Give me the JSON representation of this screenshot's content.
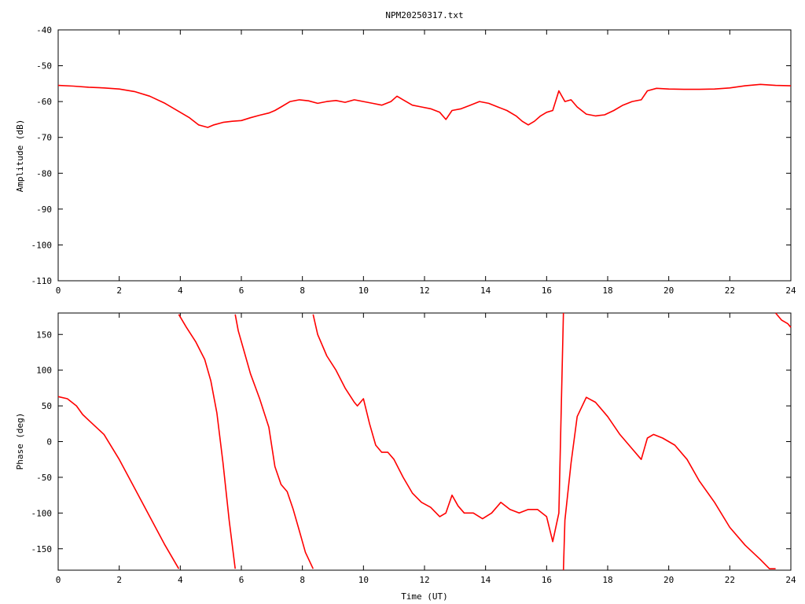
{
  "title": "NPM20250317.txt",
  "colors": {
    "series": "#ff0000",
    "axis": "#000000",
    "background": "#ffffff"
  },
  "chart_data": [
    {
      "type": "line",
      "xlabel": "",
      "ylabel": "Amplitude (dB)",
      "xlim": [
        0,
        24
      ],
      "ylim": [
        -110,
        -40
      ],
      "xticks": [
        "0",
        "2",
        "4",
        "6",
        "8",
        "10",
        "12",
        "14",
        "16",
        "18",
        "20",
        "22",
        "24"
      ],
      "yticks": [
        "-40",
        "-50",
        "-60",
        "-70",
        "-80",
        "-90",
        "-100",
        "-110"
      ],
      "grid": false,
      "legend": "none",
      "x": [
        0,
        0.5,
        1,
        1.5,
        2,
        2.5,
        3,
        3.5,
        4,
        4.3,
        4.6,
        4.9,
        5.1,
        5.4,
        5.7,
        6,
        6.3,
        6.6,
        6.9,
        7.1,
        7.3,
        7.6,
        7.9,
        8.2,
        8.5,
        8.8,
        9.1,
        9.4,
        9.7,
        10,
        10.3,
        10.6,
        10.9,
        11.1,
        11.3,
        11.6,
        11.9,
        12.2,
        12.5,
        12.7,
        12.9,
        13.2,
        13.5,
        13.8,
        14.1,
        14.4,
        14.7,
        15,
        15.2,
        15.4,
        15.6,
        15.8,
        16,
        16.2,
        16.4,
        16.6,
        16.8,
        17,
        17.3,
        17.6,
        17.9,
        18.2,
        18.5,
        18.8,
        19.1,
        19.3,
        19.6,
        20,
        20.5,
        21,
        21.5,
        22,
        22.5,
        23,
        23.5,
        24
      ],
      "y": [
        -55.5,
        -55.7,
        -56,
        -56.2,
        -56.5,
        -57.2,
        -58.5,
        -60.5,
        -63,
        -64.5,
        -66.5,
        -67.2,
        -66.5,
        -65.8,
        -65.5,
        -65.3,
        -64.5,
        -63.8,
        -63.2,
        -62.5,
        -61.5,
        -60,
        -59.5,
        -59.8,
        -60.5,
        -60,
        -59.7,
        -60.2,
        -59.5,
        -60,
        -60.5,
        -61,
        -60,
        -58.5,
        -59.5,
        -61,
        -61.5,
        -62,
        -63,
        -65,
        -62.5,
        -62,
        -61,
        -60,
        -60.5,
        -61.5,
        -62.5,
        -64,
        -65.5,
        -66.5,
        -65.5,
        -64,
        -63,
        -62.5,
        -57,
        -60,
        -59.5,
        -61.5,
        -63.5,
        -64,
        -63.7,
        -62.5,
        -61,
        -60,
        -59.5,
        -57,
        -56.3,
        -56.5,
        -56.6,
        -56.6,
        -56.5,
        -56.2,
        -55.6,
        -55.2,
        -55.5,
        -55.6
      ]
    },
    {
      "type": "line",
      "xlabel": "Time (UT)",
      "ylabel": "Phase (deg)",
      "xlim": [
        0,
        24
      ],
      "ylim": [
        -180,
        180
      ],
      "xticks": [
        "0",
        "2",
        "4",
        "6",
        "8",
        "10",
        "12",
        "14",
        "16",
        "18",
        "20",
        "22",
        "24"
      ],
      "yticks": [
        "150",
        "100",
        "50",
        "0",
        "-50",
        "-100",
        "-150"
      ],
      "grid": false,
      "legend": "none",
      "segments": [
        {
          "x": [
            0,
            0.3,
            0.6,
            0.8,
            1,
            1.5,
            2,
            2.5,
            3,
            3.5,
            3.95
          ],
          "y": [
            63,
            60,
            50,
            38,
            30,
            10,
            -25,
            -65,
            -105,
            -145,
            -178
          ]
        },
        {
          "x": [
            3.95,
            4.2,
            4.5,
            4.8,
            5.0,
            5.2,
            5.4,
            5.6,
            5.8
          ],
          "y": [
            178,
            160,
            140,
            115,
            85,
            40,
            -30,
            -110,
            -178
          ]
        },
        {
          "x": [
            5.8,
            5.9,
            6.1,
            6.3,
            6.6,
            6.9,
            7.1,
            7.3,
            7.5,
            7.7,
            7.9,
            8.1,
            8.35
          ],
          "y": [
            178,
            155,
            125,
            95,
            60,
            20,
            -35,
            -60,
            -70,
            -95,
            -125,
            -155,
            -178
          ]
        },
        {
          "x": [
            8.35,
            8.5,
            8.8,
            9.1,
            9.4,
            9.7,
            9.8,
            10,
            10.2,
            10.4,
            10.6,
            10.8,
            11,
            11.3,
            11.6,
            11.9,
            12.2,
            12.5,
            12.7,
            12.9,
            13.1,
            13.3,
            13.6,
            13.9,
            14.2,
            14.5,
            14.8,
            15.1,
            15.4,
            15.7,
            16,
            16.2,
            16.4,
            16.55
          ],
          "y": [
            178,
            150,
            120,
            100,
            75,
            55,
            50,
            60,
            25,
            -5,
            -15,
            -15,
            -25,
            -50,
            -72,
            -85,
            -92,
            -105,
            -100,
            -75,
            -90,
            -100,
            -100,
            -108,
            -100,
            -85,
            -95,
            -100,
            -95,
            -95,
            -105,
            -140,
            -100,
            180
          ]
        },
        {
          "x": [
            16.55,
            16.6,
            16.8,
            17,
            17.3,
            17.6,
            18,
            18.4,
            18.8,
            19.1,
            19.3,
            19.5,
            19.8,
            20.2,
            20.6,
            21,
            21.5,
            22,
            22.5,
            23,
            23.3,
            23.5
          ],
          "y": [
            -180,
            -110,
            -30,
            35,
            62,
            55,
            35,
            10,
            -10,
            -25,
            5,
            10,
            5,
            -5,
            -25,
            -55,
            -85,
            -120,
            -145,
            -165,
            -178,
            -178
          ]
        },
        {
          "x": [
            23.5,
            23.7,
            23.9,
            24
          ],
          "y": [
            180,
            170,
            165,
            160
          ]
        }
      ]
    }
  ]
}
